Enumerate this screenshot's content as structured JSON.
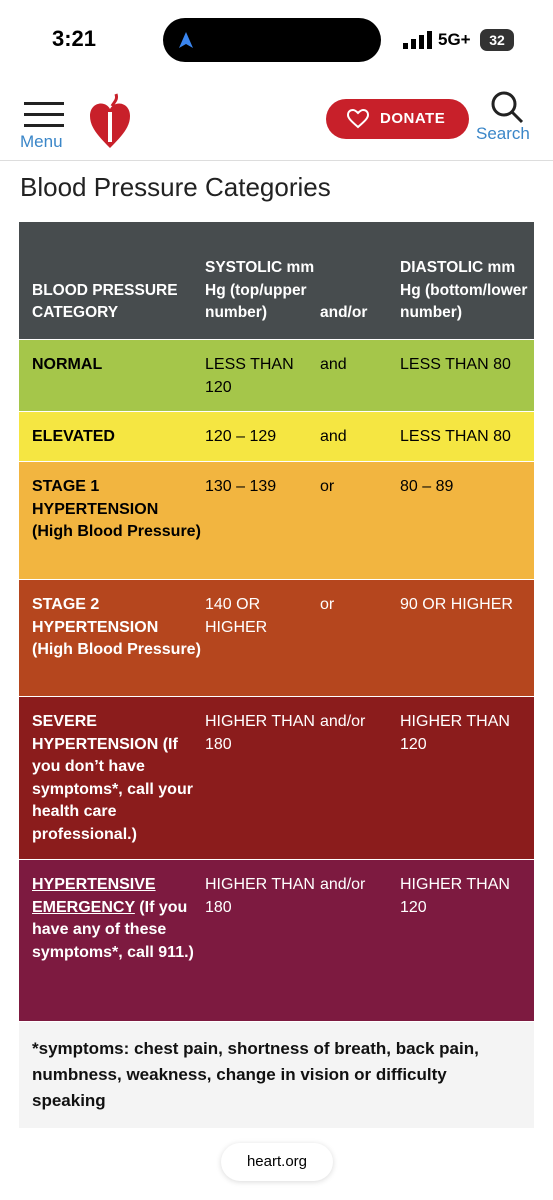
{
  "status_bar": {
    "time": "3:21",
    "network": "5G+",
    "battery": "32"
  },
  "header": {
    "menu": "Menu",
    "donate": "DONATE",
    "search": "Search"
  },
  "title": "Blood Pressure Categories",
  "table": {
    "headers": [
      "BLOOD PRESSURE CATEGORY",
      "SYSTOLIC mm Hg (top/upper number)",
      "and/or",
      "DIASTOLIC mm Hg (bottom/lower number)"
    ],
    "rows": [
      {
        "category": "NORMAL",
        "systolic": "LESS THAN 120",
        "and_or": "and",
        "diastolic": "LESS THAN 80"
      },
      {
        "category": "ELEVATED",
        "systolic": "120 – 129",
        "and_or": "and",
        "diastolic": "LESS THAN 80"
      },
      {
        "category": "STAGE 1 HYPERTENSION (High Blood Pressure)",
        "systolic": "130 – 139",
        "and_or": "or",
        "diastolic": "80 – 89"
      },
      {
        "category": "STAGE 2 HYPERTENSION (High Blood Pressure)",
        "systolic": "140 OR HIGHER",
        "and_or": "or",
        "diastolic": "90 OR HIGHER"
      },
      {
        "category": "SEVERE HYPERTENSION (If you don’t have symptoms*, call your health care professional.)",
        "systolic": "HIGHER THAN 180",
        "and_or": "and/or",
        "diastolic": "HIGHER THAN 120"
      },
      {
        "category_link": "HYPERTENSIVE EMERGENCY",
        "category": " (If you have any of these symptoms*, call 911.)",
        "systolic": "HIGHER THAN 180",
        "and_or": "and/or",
        "diastolic": "HIGHER THAN 120"
      }
    ],
    "footnote": "*symptoms: chest pain, shortness of breath, back pain, numbness, weakness, change in vision or difficulty speaking"
  },
  "url": "heart.org"
}
